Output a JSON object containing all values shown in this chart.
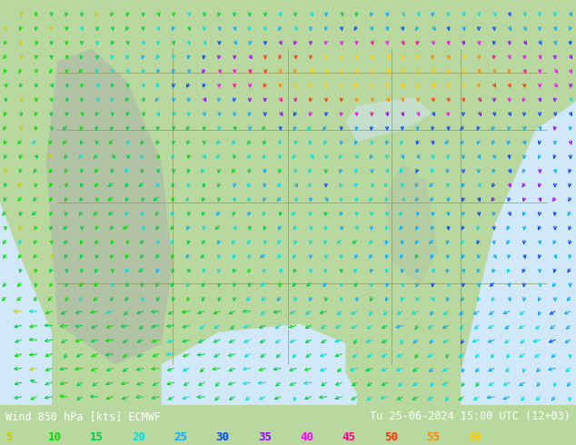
{
  "title_left": "Wind 850 hPa [kts] ECMWF",
  "title_right": "Tu 25-06-2024 15:00 UTC (12+03)",
  "legend_values": [
    "5",
    "10",
    "15",
    "20",
    "25",
    "30",
    "35",
    "40",
    "45",
    "50",
    "55",
    "60"
  ],
  "legend_colors": [
    "#cccc00",
    "#00dd00",
    "#00cc44",
    "#00dddd",
    "#00aaff",
    "#0044ff",
    "#9900ff",
    "#ff00ff",
    "#ff0088",
    "#ff3300",
    "#ff8800",
    "#ffcc00"
  ],
  "bg_land": "#b8d8a0",
  "bg_mountain": "#aaaaaa",
  "bg_ocean": "#d0e8f8",
  "bg_gulf": "#d0e8f8",
  "text_color": "#000000",
  "fig_width": 6.34,
  "fig_height": 4.9,
  "dpi": 100,
  "bottom_bar_color": "#000000",
  "barb_nx": 38,
  "barb_ny": 28
}
